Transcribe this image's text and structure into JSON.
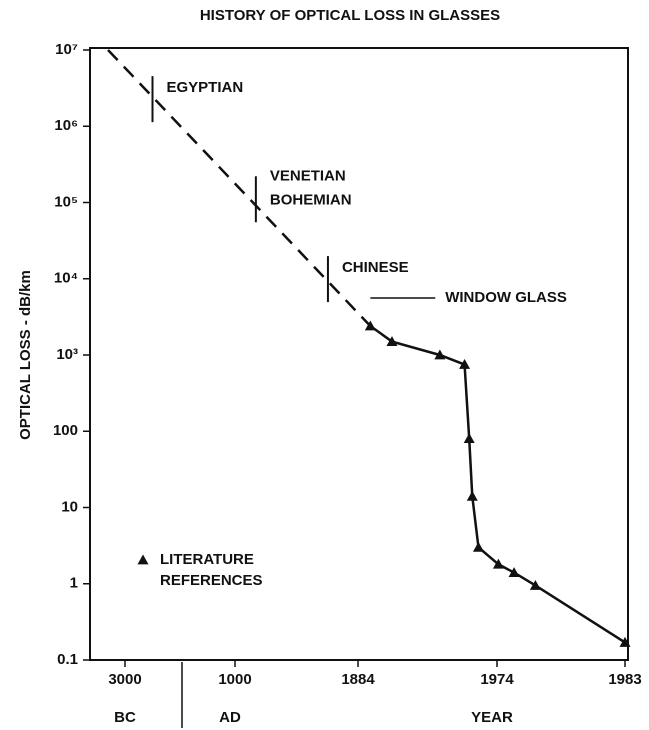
{
  "chart_data": {
    "type": "line",
    "title": "HISTORY OF OPTICAL LOSS IN GLASSES",
    "y_label": "OPTICAL LOSS - dB/km",
    "x_label": "YEAR",
    "era_labels": [
      "BC",
      "AD"
    ],
    "log_y": true,
    "ylim": [
      0.1,
      10000000
    ],
    "yticks": [
      {
        "value": 10000000,
        "label": "10⁷"
      },
      {
        "value": 1000000,
        "label": "10⁶"
      },
      {
        "value": 100000,
        "label": "10⁵"
      },
      {
        "value": 10000,
        "label": "10⁴"
      },
      {
        "value": 1000,
        "label": "10³"
      },
      100,
      10,
      1,
      0.1
    ],
    "xlim": [
      -4200,
      1983
    ],
    "xticks": [
      {
        "value": -3000,
        "label": "3000"
      },
      1000,
      1884,
      1974,
      1983
    ],
    "series": [
      {
        "style": "dashed",
        "color": "#111111",
        "x": [
          -3618,
          1892
        ],
        "values": [
          10000000,
          2400
        ]
      },
      {
        "name": "LITERATURE REFERENCES",
        "style": "solid",
        "marker": "triangle",
        "color": "#111111",
        "x": [
          1892,
          1906,
          1937,
          1953,
          1956,
          1958,
          1962,
          1974.1,
          1975.2,
          1976.7,
          1983
        ],
        "values": [
          2400,
          1500,
          1000,
          750,
          80,
          14,
          3,
          1.8,
          1.4,
          0.95,
          0.17
        ]
      }
    ],
    "annotations": [
      {
        "kind": "cross",
        "label": "EGYPTIAN",
        "x": -2000,
        "y": 2200000
      },
      {
        "kind": "cross",
        "label": "VENETIAN BOHEMIAN",
        "x": 1150,
        "y": 107000
      },
      {
        "kind": "cross",
        "label": "CHINESE",
        "x": 1668,
        "y": 9600
      },
      {
        "kind": "range",
        "label": "WINDOW GLASS",
        "x": [
          1892,
          1934
        ],
        "y": 5600
      }
    ]
  }
}
